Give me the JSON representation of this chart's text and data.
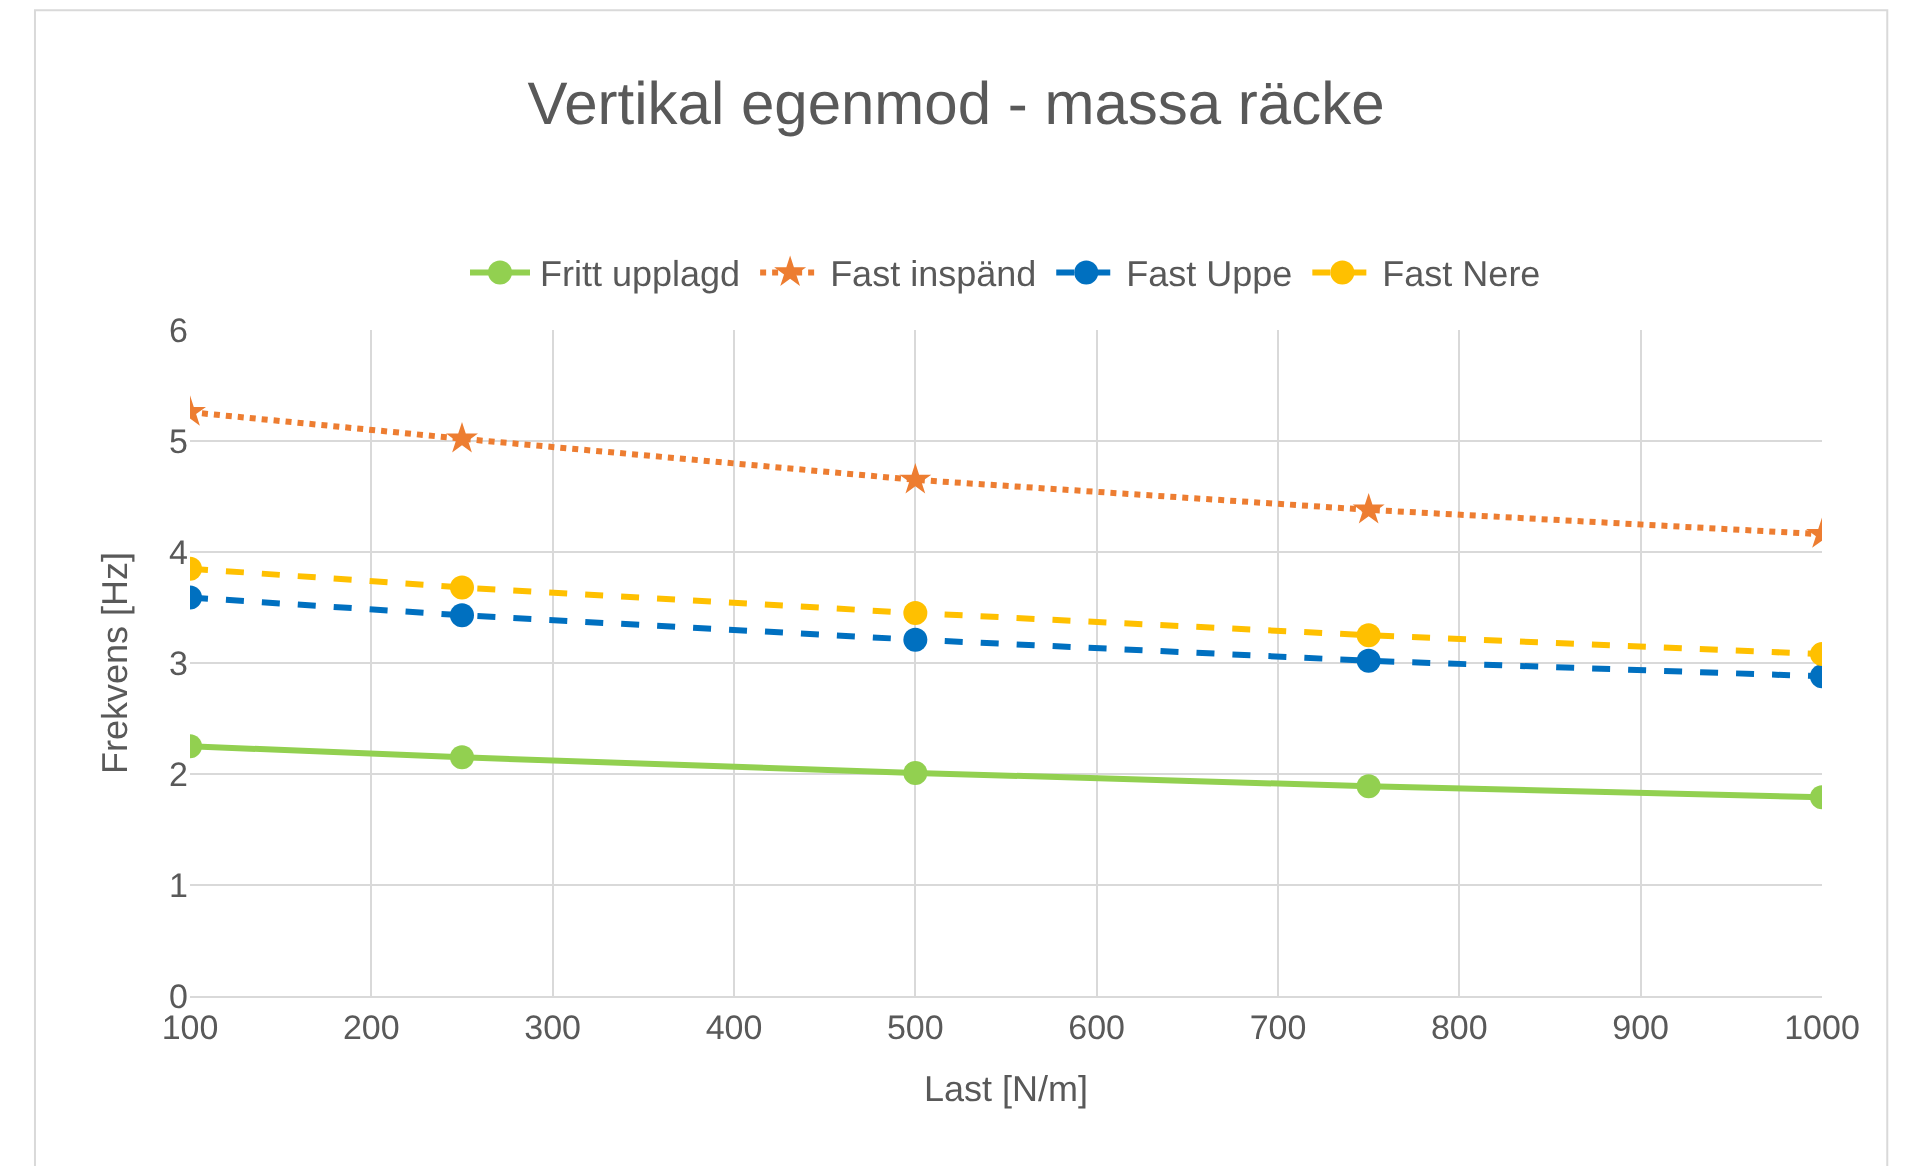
{
  "chart_data": {
    "type": "line",
    "title": "Vertikal egenmod - massa räcke",
    "xlabel": "Last [N/m]",
    "ylabel": "Frekvens [Hz]",
    "x": [
      100,
      250,
      500,
      750,
      1000
    ],
    "series": [
      {
        "name": "Fritt upplagd",
        "color": "#92d050",
        "values": [
          2.25,
          2.15,
          2.01,
          1.89,
          1.79
        ],
        "marker": "circle",
        "line_style": "solid"
      },
      {
        "name": "Fast inspänd",
        "color": "#ed7d31",
        "values": [
          5.26,
          5.02,
          4.65,
          4.38,
          4.16
        ],
        "marker": "star",
        "line_style": "dotted"
      },
      {
        "name": "Fast Uppe",
        "color": "#0070c0",
        "values": [
          3.59,
          3.43,
          3.21,
          3.02,
          2.88
        ],
        "marker": "circle",
        "line_style": "dashed"
      },
      {
        "name": "Fast Nere",
        "color": "#ffc000",
        "values": [
          3.85,
          3.68,
          3.45,
          3.25,
          3.08
        ],
        "marker": "circle",
        "line_style": "dashed"
      }
    ],
    "xlim": [
      100,
      1000
    ],
    "xticks": [
      100,
      200,
      300,
      400,
      500,
      600,
      700,
      800,
      900,
      1000
    ],
    "ylim": [
      0,
      6
    ],
    "yticks": [
      0,
      1,
      2,
      3,
      4,
      5,
      6
    ],
    "grid": true,
    "legend": "top"
  }
}
